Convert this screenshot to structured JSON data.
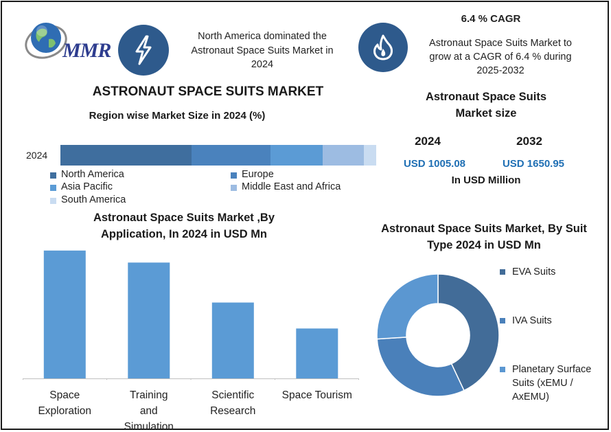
{
  "logo": {
    "text": "MMR"
  },
  "header": {
    "insight_text": "North America dominated the Astronaut Space Suits Market in 2024",
    "cagr_title": "6.4 % CAGR",
    "cagr_text": "Astronaut Space Suits Market to grow at a CAGR of 6.4 % during 2025-2032",
    "icons": [
      "lightning-icon",
      "flame-icon",
      "globe-icon"
    ]
  },
  "main_title": "ASTRONAUT SPACE SUITS MARKET",
  "market_size": {
    "title": "Astronaut Space Suits Market size",
    "year1": "2024",
    "year2": "2032",
    "value1": "USD 1005.08",
    "value2": "USD 1650.95",
    "unit": "In USD Million"
  },
  "colors": {
    "accent": "#2e5a8c",
    "value_blue": "#1f6fb4",
    "region": [
      "#3f6e9e",
      "#4a82bd",
      "#5b9bd5",
      "#9dbce2",
      "#c9dcf1"
    ],
    "bar": "#5b9bd5",
    "donut": [
      "#426c98",
      "#4a80ba",
      "#5b97d1"
    ]
  },
  "chart_data": [
    {
      "type": "bar",
      "orientation": "horizontal-stacked",
      "title": "Region wise Market Size in 2024 (%)",
      "categories": [
        "2024"
      ],
      "series": [
        {
          "name": "North America",
          "values": [
            41.5
          ]
        },
        {
          "name": "Europe",
          "values": [
            25
          ]
        },
        {
          "name": "Asia Pacific",
          "values": [
            16.5
          ]
        },
        {
          "name": "Middle East and Africa",
          "values": [
            13
          ]
        },
        {
          "name": "South America",
          "values": [
            4
          ]
        }
      ],
      "xlim": [
        0,
        100
      ],
      "legend": "bottom"
    },
    {
      "type": "bar",
      "title": "Astronaut Space Suits Market ,By Application, In 2024 in USD Mn",
      "categories": [
        "Space Exploration",
        "Training and Simulation",
        "Scientific Research",
        "Space Tourism"
      ],
      "values": [
        320,
        290,
        190,
        125
      ],
      "ylim": [
        0,
        330
      ],
      "grid": false
    },
    {
      "type": "pie",
      "style": "donut",
      "title": "Astronaut Space Suits Market, By Suit Type 2024 in USD Mn",
      "categories": [
        "EVA Suits",
        "IVA Suits",
        "Planetary Surface Suits (xEMU / AxEMU)"
      ],
      "values": [
        43,
        31,
        26
      ],
      "legend": "right"
    }
  ]
}
